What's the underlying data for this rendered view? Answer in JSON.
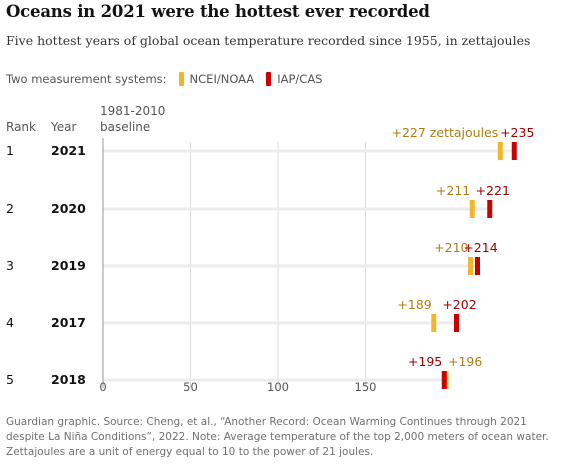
{
  "title": "Oceans in 2021 were the hottest ever recorded",
  "subtitle": "Five hottest years of global ocean temperature recorded since 1955, in zettajoules",
  "legend": {
    "prefix": "Two measurement systems:",
    "items": [
      {
        "label": "NCEI/NOAA",
        "color": "#f5b529"
      },
      {
        "label": "IAP/CAS",
        "color": "#c70000"
      }
    ]
  },
  "headers": {
    "rank": "Rank",
    "year": "Year",
    "baseline_line1": "1981-2010",
    "baseline_line2": "baseline"
  },
  "footer": "Guardian graphic. Source: Cheng, et al., “Another Record: Ocean Warming Continues through 2021 despite La Niña Conditions”, 2022. Note: Average temperature of the top 2,000 meters of ocean water. Zettajoules are a unit of energy equal to 10 to the power of 21 joules.",
  "chart_data": {
    "type": "dot-range",
    "xlim": [
      0,
      240
    ],
    "ticks": [
      0,
      50,
      100,
      150
    ],
    "series": [
      {
        "name": "NCEI/NOAA",
        "color": "#f5b529",
        "label_color": "#b07d12"
      },
      {
        "name": "IAP/CAS",
        "color": "#c70000",
        "label_color": "#a00000"
      }
    ],
    "rows": [
      {
        "rank": "1",
        "year": "2021",
        "noaa": 227,
        "iap": 235,
        "noaa_label": "+227 zettajoules",
        "iap_label": "+235"
      },
      {
        "rank": "2",
        "year": "2020",
        "noaa": 211,
        "iap": 221,
        "noaa_label": "+211",
        "iap_label": "+221"
      },
      {
        "rank": "3",
        "year": "2019",
        "noaa": 210,
        "iap": 214,
        "noaa_label": "+210",
        "iap_label": "+214"
      },
      {
        "rank": "4",
        "year": "2017",
        "noaa": 189,
        "iap": 202,
        "noaa_label": "+189",
        "iap_label": "+202"
      },
      {
        "rank": "5",
        "year": "2018",
        "noaa": 196,
        "iap": 195,
        "noaa_label": "+196",
        "iap_label": "+195"
      }
    ]
  }
}
